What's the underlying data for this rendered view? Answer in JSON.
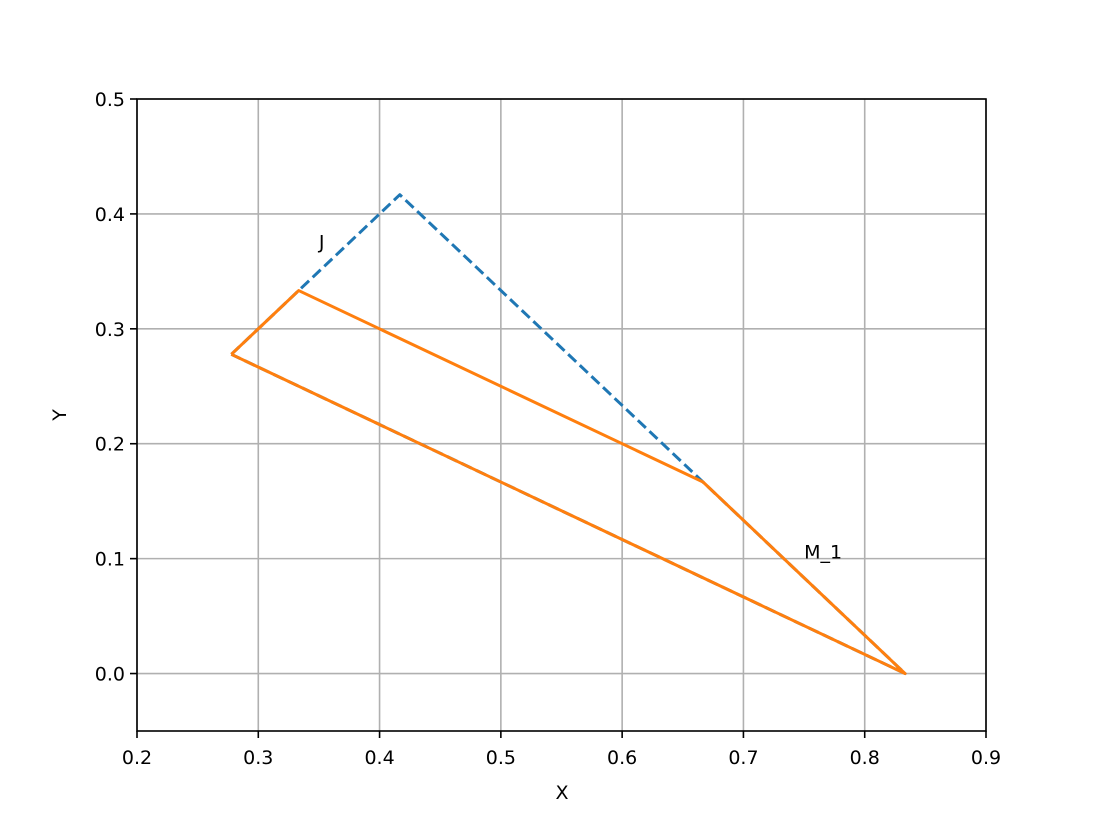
{
  "chart_data": {
    "type": "line",
    "xlabel": "X",
    "ylabel": "Y",
    "series": [
      {
        "color": "#1f77b4",
        "dash": "dashed",
        "x": [
          0.2778,
          0.4167,
          0.8333,
          0.2778
        ],
        "values": [
          0.2778,
          0.4167,
          0,
          0.2778
        ]
      },
      {
        "color": "#ff7f0e",
        "dash": "solid",
        "x": [
          0.2778,
          0.3333,
          0.6667,
          0.8333,
          0.2778
        ],
        "values": [
          0.2778,
          0.3333,
          0.1667,
          0,
          0.2778
        ]
      }
    ],
    "annotations": [
      {
        "text": "J",
        "x": 0.35,
        "y": 0.37
      },
      {
        "text": "M_1",
        "x": 0.75,
        "y": 0.1
      }
    ],
    "xlim": [
      0.2,
      0.9
    ],
    "xticks": [
      0.2,
      0.3,
      0.4,
      0.5,
      0.6,
      0.7,
      0.8,
      0.9
    ],
    "ylim": [
      -0.05,
      0.5
    ],
    "yticks": [
      {
        "value": 0,
        "label": "0.0"
      },
      0.1,
      0.2,
      0.3,
      0.4,
      0.5
    ],
    "grid": true
  }
}
